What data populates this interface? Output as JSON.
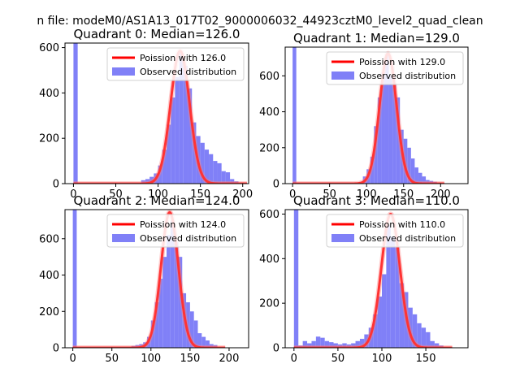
{
  "figure": {
    "suptitle": "n file: modeM0/AS1A13_017T02_9000006032_44923cztM0_level2_quad_clean"
  },
  "chart_data": [
    {
      "type": "bar",
      "title": "Quadrant 0: Median=126.0",
      "xlim": [
        -10,
        207
      ],
      "ylim": [
        0,
        620
      ],
      "xticks": [
        0,
        50,
        100,
        150,
        200
      ],
      "yticks": [
        0,
        200,
        400,
        600
      ],
      "zero_bin_value": 620,
      "legend": [
        "Poission with 126.0",
        "Observed distribution"
      ],
      "legend_position": "upper right",
      "poisson_mean": 126.0,
      "poisson_peak": 585,
      "poisson_sigma": 11.2,
      "hist_bin_width": 5,
      "hist": [
        [
          75,
          5
        ],
        [
          80,
          15
        ],
        [
          85,
          20
        ],
        [
          90,
          30
        ],
        [
          95,
          45
        ],
        [
          100,
          80
        ],
        [
          105,
          150
        ],
        [
          110,
          260
        ],
        [
          115,
          380
        ],
        [
          120,
          470
        ],
        [
          125,
          575
        ],
        [
          130,
          520
        ],
        [
          135,
          420
        ],
        [
          140,
          270
        ],
        [
          145,
          210
        ],
        [
          150,
          180
        ],
        [
          155,
          150
        ],
        [
          160,
          130
        ],
        [
          165,
          100
        ],
        [
          170,
          90
        ],
        [
          175,
          55
        ],
        [
          180,
          50
        ],
        [
          185,
          20
        ],
        [
          190,
          10
        ]
      ]
    },
    {
      "type": "bar",
      "title": "Quadrant 1: Median=129.0",
      "xlim": [
        -10,
        237
      ],
      "ylim": [
        0,
        760
      ],
      "xticks": [
        0,
        50,
        100,
        150,
        200
      ],
      "yticks": [
        0,
        200,
        400,
        600
      ],
      "zero_bin_value": 760,
      "legend": [
        "Poission with 129.0",
        "Observed distribution"
      ],
      "legend_position": "upper right",
      "poisson_mean": 129.0,
      "poisson_peak": 725,
      "poisson_sigma": 11.4,
      "hist_bin_width": 5,
      "hist": [
        [
          90,
          10
        ],
        [
          95,
          40
        ],
        [
          100,
          80
        ],
        [
          105,
          150
        ],
        [
          110,
          320
        ],
        [
          115,
          480
        ],
        [
          120,
          620
        ],
        [
          125,
          720
        ],
        [
          130,
          600
        ],
        [
          135,
          560
        ],
        [
          140,
          480
        ],
        [
          145,
          300
        ],
        [
          150,
          250
        ],
        [
          155,
          200
        ],
        [
          160,
          140
        ],
        [
          165,
          90
        ],
        [
          170,
          60
        ],
        [
          175,
          40
        ],
        [
          180,
          20
        ],
        [
          185,
          15
        ],
        [
          190,
          10
        ]
      ]
    },
    {
      "type": "bar",
      "title": "Quadrant 2: Median=124.0",
      "xlim": [
        -10,
        225
      ],
      "ylim": [
        0,
        760
      ],
      "xticks": [
        0,
        50,
        100,
        150,
        200
      ],
      "yticks": [
        0,
        200,
        400,
        600
      ],
      "zero_bin_value": 760,
      "legend": [
        "Poission with 124.0",
        "Observed distribution"
      ],
      "legend_position": "upper right",
      "poisson_mean": 124.0,
      "poisson_peak": 745,
      "poisson_sigma": 11.1,
      "hist_bin_width": 5,
      "hist": [
        [
          70,
          5
        ],
        [
          75,
          10
        ],
        [
          80,
          15
        ],
        [
          85,
          20
        ],
        [
          90,
          30
        ],
        [
          95,
          60
        ],
        [
          100,
          150
        ],
        [
          105,
          250
        ],
        [
          110,
          380
        ],
        [
          115,
          500
        ],
        [
          120,
          620
        ],
        [
          125,
          700
        ],
        [
          130,
          580
        ],
        [
          135,
          500
        ],
        [
          140,
          300
        ],
        [
          145,
          250
        ],
        [
          150,
          200
        ],
        [
          155,
          150
        ],
        [
          160,
          80
        ],
        [
          165,
          60
        ],
        [
          170,
          40
        ],
        [
          175,
          20
        ],
        [
          180,
          15
        ]
      ]
    },
    {
      "type": "bar",
      "title": "Quadrant 3: Median=110.0",
      "xlim": [
        -10,
        198
      ],
      "ylim": [
        0,
        620
      ],
      "xticks": [
        0,
        50,
        100,
        150
      ],
      "yticks": [
        0,
        200,
        400,
        600
      ],
      "zero_bin_value": 620,
      "legend": [
        "Poission with 110.0",
        "Observed distribution"
      ],
      "legend_position": "upper right",
      "poisson_mean": 110.0,
      "poisson_peak": 600,
      "poisson_sigma": 10.5,
      "hist_bin_width": 5,
      "hist": [
        [
          5,
          10
        ],
        [
          10,
          30
        ],
        [
          15,
          20
        ],
        [
          20,
          30
        ],
        [
          25,
          50
        ],
        [
          30,
          45
        ],
        [
          35,
          30
        ],
        [
          40,
          25
        ],
        [
          45,
          20
        ],
        [
          50,
          15
        ],
        [
          55,
          20
        ],
        [
          60,
          15
        ],
        [
          65,
          20
        ],
        [
          70,
          30
        ],
        [
          75,
          40
        ],
        [
          80,
          60
        ],
        [
          85,
          90
        ],
        [
          90,
          150
        ],
        [
          95,
          230
        ],
        [
          100,
          330
        ],
        [
          105,
          550
        ],
        [
          110,
          500
        ],
        [
          115,
          450
        ],
        [
          120,
          290
        ],
        [
          125,
          250
        ],
        [
          130,
          180
        ],
        [
          135,
          150
        ],
        [
          140,
          110
        ],
        [
          145,
          90
        ],
        [
          150,
          70
        ],
        [
          155,
          30
        ],
        [
          160,
          20
        ],
        [
          165,
          10
        ]
      ]
    }
  ]
}
